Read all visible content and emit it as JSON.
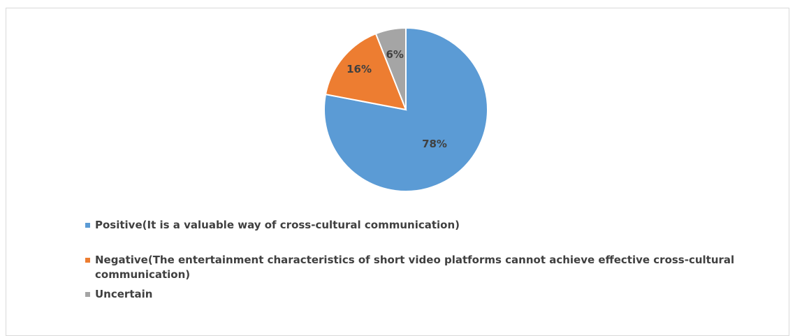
{
  "chart_data": {
    "type": "pie",
    "title": "",
    "slices": [
      {
        "label": "Positive(It is a valuable way of cross-cultural communication)",
        "value": 78,
        "data_label": "78%",
        "color": "#5B9BD5"
      },
      {
        "label": "Negative(The entertainment characteristics of short video platforms cannot achieve effective cross-cultural communication)",
        "value": 16,
        "data_label": "16%",
        "color": "#ED7D31"
      },
      {
        "label": "Uncertain",
        "value": 6,
        "data_label": "6%",
        "color": "#A5A5A5"
      }
    ],
    "start_angle": "12 o'clock",
    "direction": "clockwise",
    "legend_position": "bottom-left"
  }
}
